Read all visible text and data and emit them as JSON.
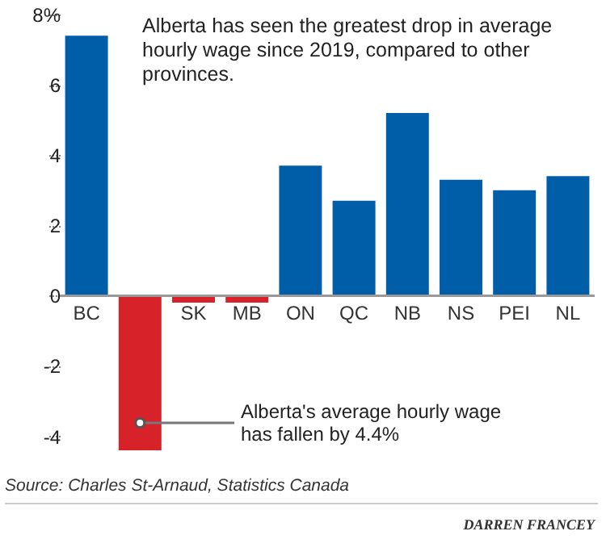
{
  "chart_data": {
    "type": "bar",
    "title": "Alberta has seen the greatest drop in average hourly wage since 2019, compared to other provinces.",
    "categories": [
      "BC",
      null,
      "SK",
      "MB",
      "ON",
      "QC",
      "NB",
      "NS",
      "PEI",
      "NL"
    ],
    "values": [
      7.4,
      -4.4,
      -0.2,
      -0.2,
      3.7,
      2.7,
      5.2,
      3.3,
      3.0,
      3.4
    ],
    "colors": [
      "#005da8",
      "#d7222a",
      "#d7222a",
      "#d7222a",
      "#005da8",
      "#005da8",
      "#005da8",
      "#005da8",
      "#005da8",
      "#005da8"
    ],
    "ylim": [
      -4.4,
      8
    ],
    "yticks": [
      -4,
      -2,
      0,
      2,
      4,
      6,
      {
        "value": 8,
        "label": "8%"
      }
    ],
    "grid": false,
    "annotations": [
      "Alberta's average hourly wage has fallen by 4.4%",
      "Source: Charles St-Arnaud, Statistics Canada",
      "DARREN FRANCEY"
    ]
  }
}
